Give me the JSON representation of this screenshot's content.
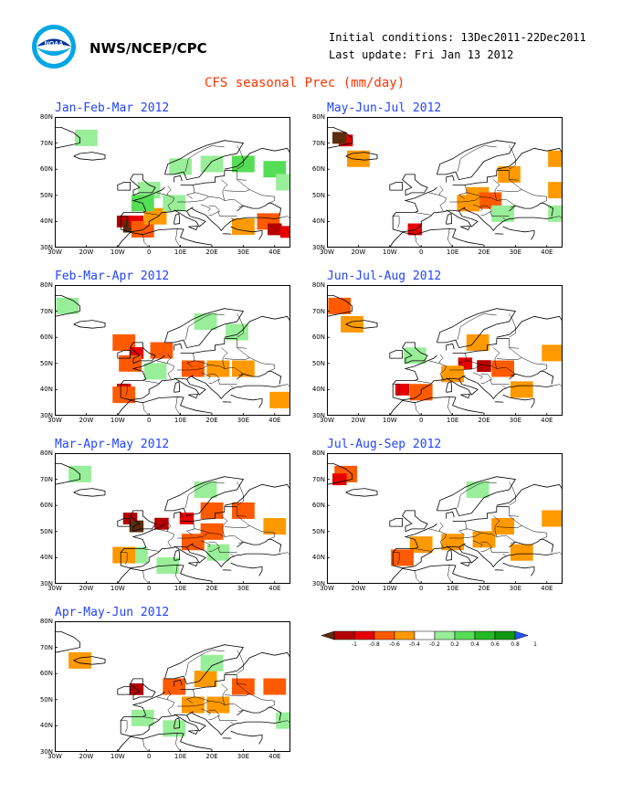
{
  "header": {
    "org": "NWS/NCEP/CPC",
    "initial_conditions": "Initial conditions: 13Dec2011-22Dec2011",
    "last_update": "Last update: Fri Jan 13 2012",
    "title": "CFS seasonal Prec (mm/day)"
  },
  "axes": {
    "lat_labels": [
      "80N",
      "70N",
      "60N",
      "50N",
      "40N",
      "30N"
    ],
    "lon_labels": [
      "30W",
      "20W",
      "10W",
      "0",
      "10E",
      "20E",
      "30E",
      "40E"
    ]
  },
  "colors": {
    "frame": "#000000",
    "coast": "#000000",
    "title_red": "#ff3300",
    "panel_title_blue": "#2244ff"
  },
  "panels": [
    {
      "id": "jfm",
      "title": "Jan-Feb-Mar 2012",
      "anomalies": [
        {
          "lon": -8,
          "lat": 40,
          "v": -0.8
        },
        {
          "lon": -6,
          "lat": 38,
          "v": -1.0
        },
        {
          "lon": -4,
          "lat": 40,
          "v": -0.6
        },
        {
          "lon": -2,
          "lat": 37,
          "v": -0.4
        },
        {
          "lon": 2,
          "lat": 42,
          "v": -0.3
        },
        {
          "lon": 38,
          "lat": 40,
          "v": -0.4
        },
        {
          "lon": 40,
          "lat": 37,
          "v": -0.8
        },
        {
          "lon": 44,
          "lat": 36,
          "v": -0.6
        },
        {
          "lon": 30,
          "lat": 38,
          "v": -0.3
        },
        {
          "lon": 10,
          "lat": 61,
          "v": 0.3
        },
        {
          "lon": 20,
          "lat": 62,
          "v": 0.3
        },
        {
          "lon": 30,
          "lat": 62,
          "v": 0.4
        },
        {
          "lon": 40,
          "lat": 60,
          "v": 0.4
        },
        {
          "lon": 44,
          "lat": 55,
          "v": 0.3
        },
        {
          "lon": 0,
          "lat": 52,
          "v": 0.3
        },
        {
          "lon": -2,
          "lat": 47,
          "v": 0.4
        },
        {
          "lon": 8,
          "lat": 47,
          "v": 0.3
        },
        {
          "lon": -20,
          "lat": 72,
          "v": 0.3
        }
      ]
    },
    {
      "id": "mjj",
      "title": "May-Jun-Jul 2012",
      "anomalies": [
        {
          "lon": -24,
          "lat": 71,
          "v": -0.6
        },
        {
          "lon": -26,
          "lat": 72,
          "v": -1.0
        },
        {
          "lon": -20,
          "lat": 64,
          "v": -0.3
        },
        {
          "lon": 18,
          "lat": 50,
          "v": -0.3
        },
        {
          "lon": 22,
          "lat": 48,
          "v": -0.4
        },
        {
          "lon": 15,
          "lat": 47,
          "v": -0.3
        },
        {
          "lon": 28,
          "lat": 58,
          "v": -0.3
        },
        {
          "lon": 44,
          "lat": 64,
          "v": -0.3
        },
        {
          "lon": 44,
          "lat": 52,
          "v": -0.3
        },
        {
          "lon": -2,
          "lat": 37,
          "v": -0.6
        },
        {
          "lon": 26,
          "lat": 43,
          "v": 0.3
        },
        {
          "lon": 44,
          "lat": 43,
          "v": 0.3
        }
      ]
    },
    {
      "id": "fma",
      "title": "Feb-Mar-Apr 2012",
      "anomalies": [
        {
          "lon": -26,
          "lat": 72,
          "v": 0.3
        },
        {
          "lon": -8,
          "lat": 58,
          "v": -0.4
        },
        {
          "lon": -4,
          "lat": 54,
          "v": -0.6
        },
        {
          "lon": -6,
          "lat": 50,
          "v": -0.4
        },
        {
          "lon": 4,
          "lat": 55,
          "v": -0.4
        },
        {
          "lon": 14,
          "lat": 48,
          "v": -0.4
        },
        {
          "lon": 22,
          "lat": 48,
          "v": -0.3
        },
        {
          "lon": 30,
          "lat": 48,
          "v": -0.3
        },
        {
          "lon": -8,
          "lat": 40,
          "v": -0.6
        },
        {
          "lon": -8,
          "lat": 38,
          "v": -0.4
        },
        {
          "lon": 42,
          "lat": 36,
          "v": -0.3
        },
        {
          "lon": 28,
          "lat": 62,
          "v": 0.3
        },
        {
          "lon": 18,
          "lat": 66,
          "v": 0.3
        },
        {
          "lon": 2,
          "lat": 47,
          "v": 0.3
        }
      ]
    },
    {
      "id": "jja",
      "title": "Jun-Jul-Aug 2012",
      "anomalies": [
        {
          "lon": -26,
          "lat": 72,
          "v": -0.4
        },
        {
          "lon": -22,
          "lat": 65,
          "v": -0.3
        },
        {
          "lon": -2,
          "lat": 53,
          "v": 0.3
        },
        {
          "lon": 14,
          "lat": 50,
          "v": -0.6
        },
        {
          "lon": 20,
          "lat": 49,
          "v": -0.8
        },
        {
          "lon": 26,
          "lat": 48,
          "v": -0.4
        },
        {
          "lon": 10,
          "lat": 46,
          "v": -0.3
        },
        {
          "lon": -6,
          "lat": 40,
          "v": -0.6
        },
        {
          "lon": 0,
          "lat": 39,
          "v": -0.4
        },
        {
          "lon": 32,
          "lat": 40,
          "v": -0.3
        },
        {
          "lon": 42,
          "lat": 54,
          "v": -0.3
        },
        {
          "lon": 18,
          "lat": 58,
          "v": -0.3
        }
      ]
    },
    {
      "id": "mam",
      "title": "Mar-Apr-May 2012",
      "anomalies": [
        {
          "lon": -22,
          "lat": 72,
          "v": 0.3
        },
        {
          "lon": -6,
          "lat": 55,
          "v": -0.8
        },
        {
          "lon": -4,
          "lat": 52,
          "v": -1.0
        },
        {
          "lon": 4,
          "lat": 53,
          "v": -0.8
        },
        {
          "lon": 12,
          "lat": 55,
          "v": -0.6
        },
        {
          "lon": 20,
          "lat": 58,
          "v": -0.4
        },
        {
          "lon": 20,
          "lat": 50,
          "v": -0.4
        },
        {
          "lon": 14,
          "lat": 46,
          "v": -0.4
        },
        {
          "lon": 30,
          "lat": 58,
          "v": -0.4
        },
        {
          "lon": 40,
          "lat": 52,
          "v": -0.3
        },
        {
          "lon": -4,
          "lat": 41,
          "v": 0.3
        },
        {
          "lon": 6,
          "lat": 37,
          "v": 0.3
        },
        {
          "lon": 22,
          "lat": 42,
          "v": 0.3
        },
        {
          "lon": -8,
          "lat": 41,
          "v": -0.3
        },
        {
          "lon": 18,
          "lat": 66,
          "v": 0.3
        }
      ]
    },
    {
      "id": "jas",
      "title": "Jul-Aug-Sep 2012",
      "anomalies": [
        {
          "lon": -24,
          "lat": 72,
          "v": -0.4
        },
        {
          "lon": -26,
          "lat": 70,
          "v": -0.6
        },
        {
          "lon": 18,
          "lat": 66,
          "v": 0.3
        },
        {
          "lon": 0,
          "lat": 45,
          "v": -0.3
        },
        {
          "lon": 10,
          "lat": 46,
          "v": -0.3
        },
        {
          "lon": 20,
          "lat": 47,
          "v": -0.3
        },
        {
          "lon": -6,
          "lat": 40,
          "v": -0.4
        },
        {
          "lon": 32,
          "lat": 42,
          "v": -0.3
        },
        {
          "lon": 42,
          "lat": 55,
          "v": -0.3
        },
        {
          "lon": 26,
          "lat": 52,
          "v": -0.3
        }
      ]
    },
    {
      "id": "amj",
      "title": "Apr-May-Jun 2012",
      "anomalies": [
        {
          "lon": -22,
          "lat": 65,
          "v": -0.3
        },
        {
          "lon": -4,
          "lat": 54,
          "v": -0.8
        },
        {
          "lon": 8,
          "lat": 55,
          "v": -0.4
        },
        {
          "lon": 18,
          "lat": 58,
          "v": -0.3
        },
        {
          "lon": 30,
          "lat": 55,
          "v": -0.4
        },
        {
          "lon": 40,
          "lat": 55,
          "v": -0.4
        },
        {
          "lon": 22,
          "lat": 48,
          "v": -0.3
        },
        {
          "lon": 14,
          "lat": 48,
          "v": -0.3
        },
        {
          "lon": -2,
          "lat": 43,
          "v": 0.3
        },
        {
          "lon": 8,
          "lat": 39,
          "v": 0.3
        },
        {
          "lon": 44,
          "lat": 42,
          "v": 0.3
        },
        {
          "lon": 20,
          "lat": 64,
          "v": 0.3
        }
      ]
    }
  ],
  "legend": {
    "ticks": [
      "-1",
      "-0.8",
      "-0.6",
      "-0.4",
      "-0.2",
      "0.2",
      "0.4",
      "0.6",
      "0.8",
      "1"
    ],
    "colors": [
      "#5a2d0c",
      "#b40000",
      "#e60000",
      "#ff5a00",
      "#ff9900",
      "#ffffff",
      "#99ee99",
      "#55dd55",
      "#22bb22",
      "#119911",
      "#2255ff"
    ]
  }
}
